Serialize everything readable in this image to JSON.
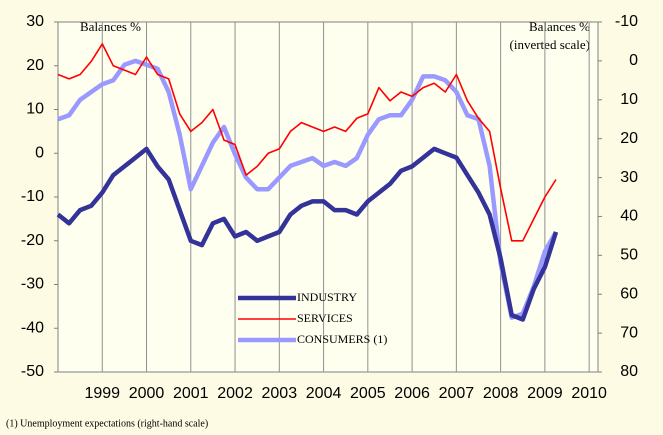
{
  "chart_data": {
    "type": "line",
    "left_label": "Balances %",
    "right_label": "Balances %",
    "right_sublabel": "(inverted scale)",
    "footnote": "(1) Unemployment expectations (right-hand scale)",
    "x": [
      1998,
      1998.25,
      1998.5,
      1998.75,
      1999,
      1999.25,
      1999.5,
      1999.75,
      2000,
      2000.25,
      2000.5,
      2000.75,
      2001,
      2001.25,
      2001.5,
      2001.75,
      2002,
      2002.25,
      2002.5,
      2002.75,
      2003,
      2003.25,
      2003.5,
      2003.75,
      2004,
      2004.25,
      2004.5,
      2004.75,
      2005,
      2005.25,
      2005.5,
      2005.75,
      2006,
      2006.25,
      2006.5,
      2006.75,
      2007,
      2007.25,
      2007.5,
      2007.75,
      2008,
      2008.25,
      2008.5,
      2008.75,
      2009,
      2009.25
    ],
    "xlim": [
      1998,
      2010.2
    ],
    "xticks": [
      1999,
      2000,
      2001,
      2002,
      2003,
      2004,
      2005,
      2006,
      2007,
      2008,
      2009,
      2010
    ],
    "ylim": [
      -50,
      30
    ],
    "yticks": [
      -50,
      -40,
      -30,
      -20,
      -10,
      0,
      10,
      20,
      30
    ],
    "y2lim": [
      80,
      -10
    ],
    "y2ticks": [
      -10,
      0,
      10,
      20,
      30,
      40,
      50,
      60,
      70,
      80
    ],
    "y2_inverted": true,
    "series": [
      {
        "name": "INDUSTRY",
        "color": "#333399",
        "values": [
          -14,
          -16,
          -13,
          -12,
          -9,
          -5,
          -3,
          -1,
          1,
          -3,
          -6,
          -13,
          -20,
          -21,
          -16,
          -15,
          -19,
          -18,
          -20,
          -19,
          -18,
          -14,
          -12,
          -11,
          -11,
          -13,
          -13,
          -14,
          -11,
          -9,
          -7,
          -4,
          -3,
          -1,
          1,
          0,
          -1,
          -5,
          -9,
          -14,
          -24,
          -37,
          -38,
          -31,
          -26,
          -18
        ]
      },
      {
        "name": "SERVICES",
        "color": "#ff0000",
        "values": [
          18,
          17,
          18,
          21,
          25,
          20,
          19,
          18,
          22,
          18,
          17,
          9,
          5,
          7,
          10,
          3,
          2,
          -5,
          -3,
          0,
          1,
          5,
          7,
          6,
          5,
          6,
          5,
          8,
          9,
          15,
          12,
          14,
          13,
          15,
          16,
          14,
          18,
          12,
          8,
          5,
          -8,
          -20,
          -20,
          -15,
          -10,
          -6
        ]
      },
      {
        "name": "CONSUMERS (1)",
        "color": "#9999ff",
        "axis": "y2",
        "values": [
          15,
          14,
          10,
          8,
          6,
          5,
          1,
          0,
          1,
          2,
          8,
          19,
          33,
          27,
          21,
          17,
          24,
          30,
          33,
          33,
          30,
          27,
          26,
          25,
          27,
          26,
          27,
          25,
          19,
          15,
          14,
          14,
          10,
          4,
          4,
          5,
          8,
          14,
          15,
          27,
          52,
          66,
          65,
          58,
          49,
          44
        ]
      }
    ]
  }
}
